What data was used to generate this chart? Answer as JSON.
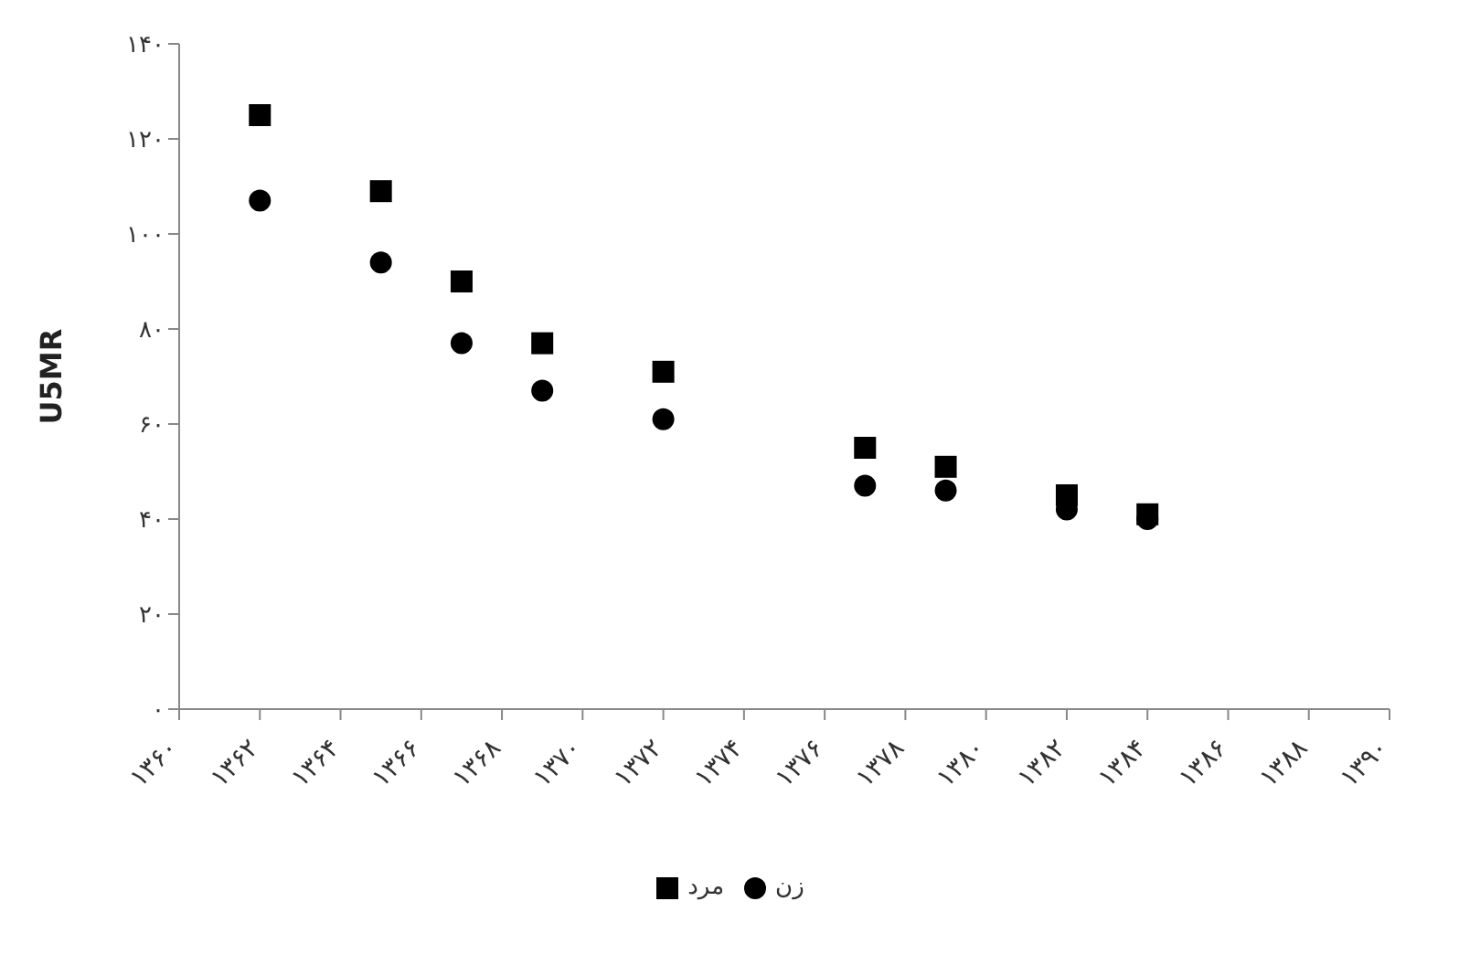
{
  "chart_data": {
    "type": "scatter",
    "ylabel": "U5MR",
    "xlim": [
      1360,
      1390
    ],
    "xticks": [
      {
        "value": 1360,
        "label": "۱۳۶۰"
      },
      {
        "value": 1362,
        "label": "۱۳۶۲"
      },
      {
        "value": 1364,
        "label": "۱۳۶۴"
      },
      {
        "value": 1366,
        "label": "۱۳۶۶"
      },
      {
        "value": 1368,
        "label": "۱۳۶۸"
      },
      {
        "value": 1370,
        "label": "۱۳۷۰"
      },
      {
        "value": 1372,
        "label": "۱۳۷۲"
      },
      {
        "value": 1374,
        "label": "۱۳۷۴"
      },
      {
        "value": 1376,
        "label": "۱۳۷۶"
      },
      {
        "value": 1378,
        "label": "۱۳۷۸"
      },
      {
        "value": 1380,
        "label": "۱۳۸۰"
      },
      {
        "value": 1382,
        "label": "۱۳۸۲"
      },
      {
        "value": 1384,
        "label": "۱۳۸۴"
      },
      {
        "value": 1386,
        "label": "۱۳۸۶"
      },
      {
        "value": 1388,
        "label": "۱۳۸۸"
      },
      {
        "value": 1390,
        "label": "۱۳۹۰"
      }
    ],
    "ylim": [
      0,
      140
    ],
    "yticks": [
      {
        "value": 0,
        "label": "۰"
      },
      {
        "value": 20,
        "label": "۲۰"
      },
      {
        "value": 40,
        "label": "۴۰"
      },
      {
        "value": 60,
        "label": "۶۰"
      },
      {
        "value": 80,
        "label": "۸۰"
      },
      {
        "value": 100,
        "label": "۱۰۰"
      },
      {
        "value": 120,
        "label": "۱۲۰"
      },
      {
        "value": 140,
        "label": "۱۴۰"
      }
    ],
    "grid": false,
    "legend": "bottom",
    "series": [
      {
        "name": "مرد",
        "color": "#000000",
        "marker": "square",
        "x": [
          1362,
          1365,
          1367,
          1369,
          1372,
          1377,
          1379,
          1382,
          1384
        ],
        "values": [
          125,
          109,
          90,
          77,
          71,
          55,
          51,
          45,
          41
        ]
      },
      {
        "name": "زن",
        "color": "#000000",
        "marker": "circle",
        "x": [
          1362,
          1365,
          1367,
          1369,
          1372,
          1377,
          1379,
          1382,
          1384
        ],
        "values": [
          107,
          94,
          77,
          67,
          61,
          47,
          46,
          42,
          40
        ]
      }
    ]
  }
}
